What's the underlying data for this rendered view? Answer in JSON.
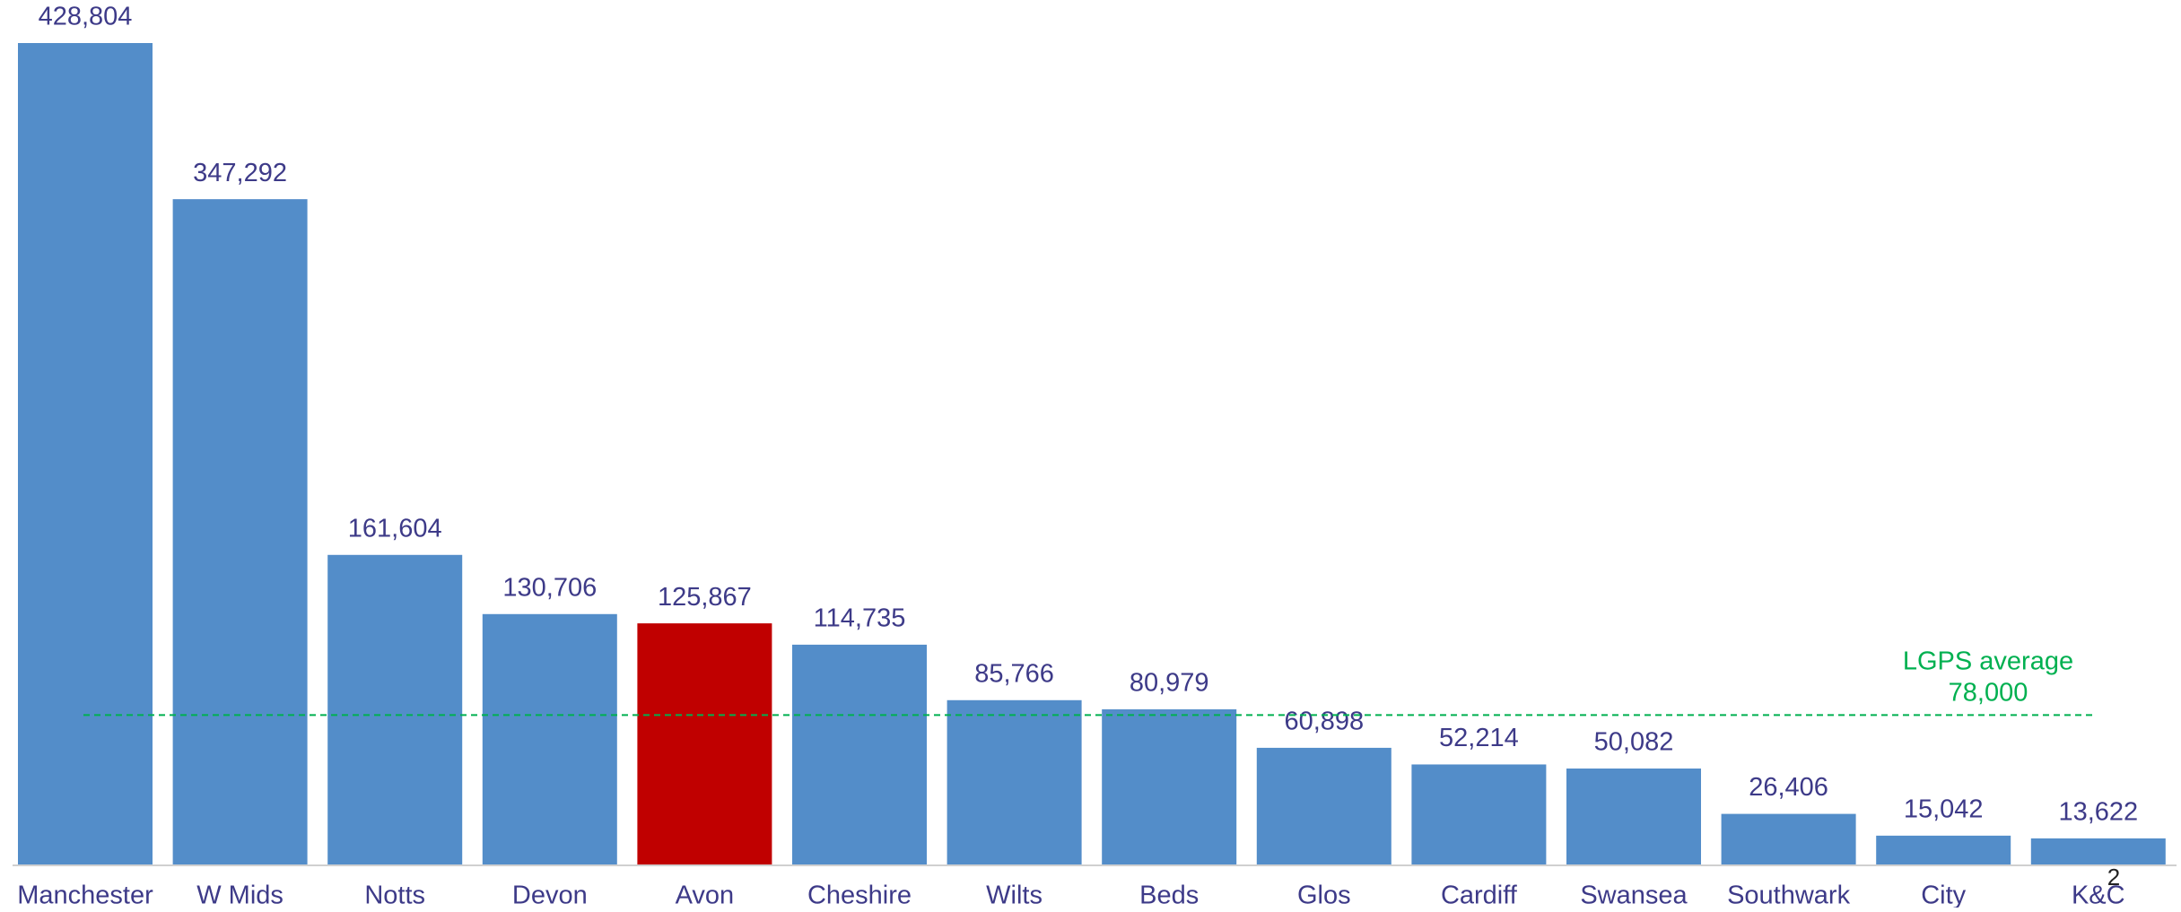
{
  "chart_data": {
    "type": "bar",
    "categories": [
      "Manchester",
      "W Mids",
      "Notts",
      "Devon",
      "Avon",
      "Cheshire",
      "Wilts",
      "Beds",
      "Glos",
      "Cardiff",
      "Swansea",
      "Southwark",
      "City",
      "K&C"
    ],
    "values": [
      428804,
      347292,
      161604,
      130706,
      125867,
      114735,
      85766,
      80979,
      60898,
      52214,
      50082,
      26406,
      15042,
      13622
    ],
    "value_labels": [
      "428,804",
      "347,292",
      "161,604",
      "130,706",
      "125,867",
      "114,735",
      "85,766",
      "80,979",
      "60,898",
      "52,214",
      "50,082",
      "26,406",
      "15,042",
      "13,622"
    ],
    "colors": [
      "#538dc9",
      "#538dc9",
      "#538dc9",
      "#538dc9",
      "#c00000",
      "#538dc9",
      "#538dc9",
      "#538dc9",
      "#538dc9",
      "#538dc9",
      "#538dc9",
      "#538dc9",
      "#538dc9",
      "#538dc9"
    ],
    "reference_line": {
      "value": 78000,
      "label": "LGPS average",
      "value_label": "78,000",
      "color": "#00b050"
    },
    "page_number": "2"
  }
}
